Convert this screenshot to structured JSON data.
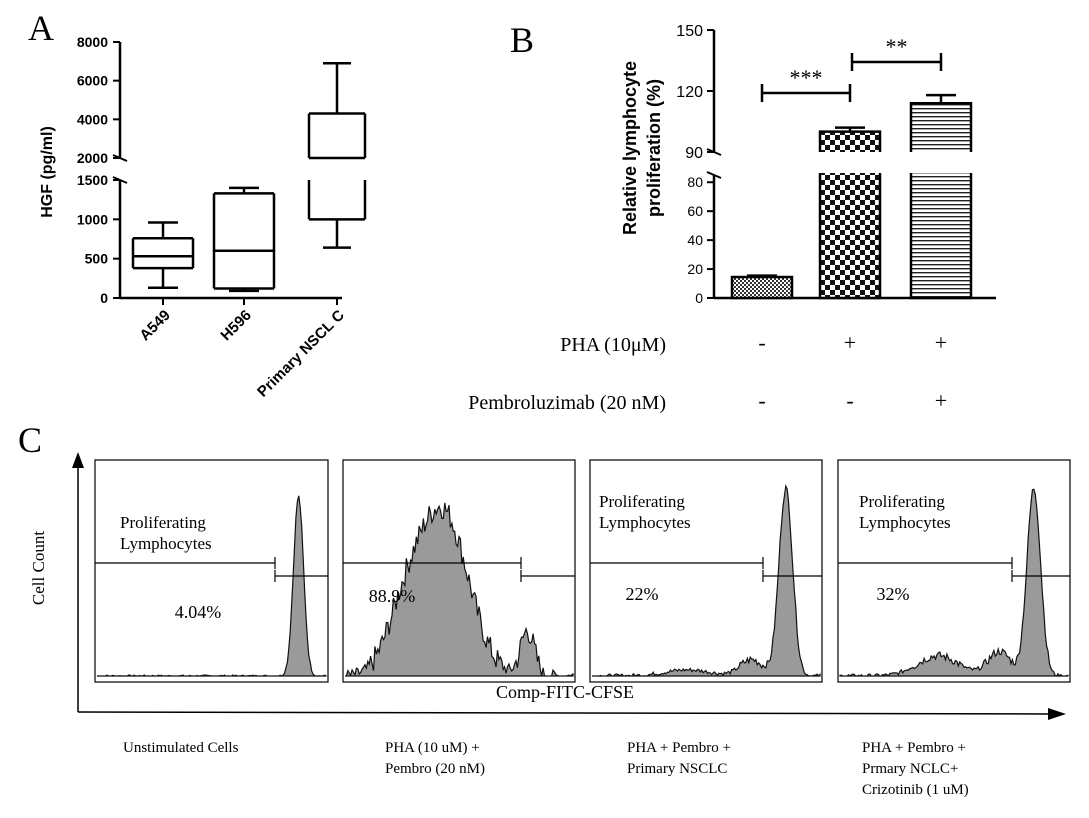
{
  "panel_a": {
    "letter": "A",
    "ylabel": "HGF (pg/ml)",
    "upper_ticks": [
      "8000",
      "6000",
      "4000",
      "2000"
    ],
    "lower_ticks": [
      "1500",
      "1000",
      "500",
      "0"
    ],
    "categories": [
      "A549",
      "H596",
      "Primary NSCL C"
    ]
  },
  "panel_b": {
    "letter": "B",
    "ylabel_line1": "Relative lymphocyte",
    "ylabel_line2": "proliferation (%)",
    "upper_ticks": [
      "150",
      "120",
      "90"
    ],
    "lower_ticks": [
      "80",
      "60",
      "40",
      "20",
      "0"
    ],
    "sig1": "***",
    "sig2": "**",
    "row1_label": "PHA (10μM)",
    "row1_signs": [
      "-",
      "+",
      "+"
    ],
    "row2_label": "Pembroluzimab (20 nM)",
    "row2_signs": [
      "-",
      "-",
      "+"
    ]
  },
  "panel_c": {
    "letter": "C",
    "ylabel": "Cell Count",
    "xlabel": "Comp-FITC-CFSE",
    "gate_label_line1": "Proliferating",
    "gate_label_line2": "Lymphocytes",
    "percents": [
      "4.04%",
      "88.9%",
      "22%",
      "32%"
    ],
    "captions": [
      [
        "Unstimulated Cells"
      ],
      [
        "PHA (10 uM) +",
        "Pembro (20 nM)"
      ],
      [
        "PHA + Pembro +",
        "Primary NSCLC"
      ],
      [
        "PHA + Pembro +",
        "Prmary NCLC+",
        "Crizotinib (1 uM)"
      ]
    ]
  },
  "chart_data": [
    {
      "type": "box",
      "title": "",
      "ylabel": "HGF (pg/ml)",
      "scale": "broken",
      "lower_range": [
        0,
        1500
      ],
      "upper_range": [
        2000,
        8000
      ],
      "categories": [
        "A549",
        "H596",
        "Primary NSCL C"
      ],
      "boxes": [
        {
          "min": 130,
          "q1": 380,
          "median": 530,
          "q3": 760,
          "max": 960
        },
        {
          "min": 90,
          "q1": 120,
          "median": 600,
          "q3": 1330,
          "max": 1400
        },
        {
          "min": 640,
          "q1": 1000,
          "median": 2000,
          "q3": 4300,
          "max": 6900
        }
      ]
    },
    {
      "type": "bar",
      "title": "",
      "ylabel": "Relative lymphocyte proliferation (%)",
      "scale": "broken",
      "lower_range": [
        0,
        85
      ],
      "upper_range": [
        90,
        150
      ],
      "categories": [
        "PHA - / Pembro -",
        "PHA + / Pembro -",
        "PHA + / Pembro +"
      ],
      "values": [
        14.5,
        100,
        114
      ],
      "errors": [
        1,
        2,
        4
      ],
      "patterns": [
        "dots",
        "checker",
        "horizontal-lines"
      ],
      "significance": [
        {
          "from": 0,
          "to": 1,
          "label": "***"
        },
        {
          "from": 1,
          "to": 2,
          "label": "**"
        }
      ]
    },
    {
      "type": "histogram",
      "title": "",
      "xlabel": "Comp-FITC-CFSE",
      "ylabel": "Cell Count",
      "panels": [
        {
          "caption": "Unstimulated Cells",
          "proliferating_percent": 4.04
        },
        {
          "caption": "PHA (10 uM) + Pembro (20 nM)",
          "proliferating_percent": 88.9
        },
        {
          "caption": "PHA + Pembro + Primary NSCLC",
          "proliferating_percent": 22
        },
        {
          "caption": "PHA + Pembro + Prmary NCLC+ Crizotinib (1 uM)",
          "proliferating_percent": 32
        }
      ]
    }
  ]
}
